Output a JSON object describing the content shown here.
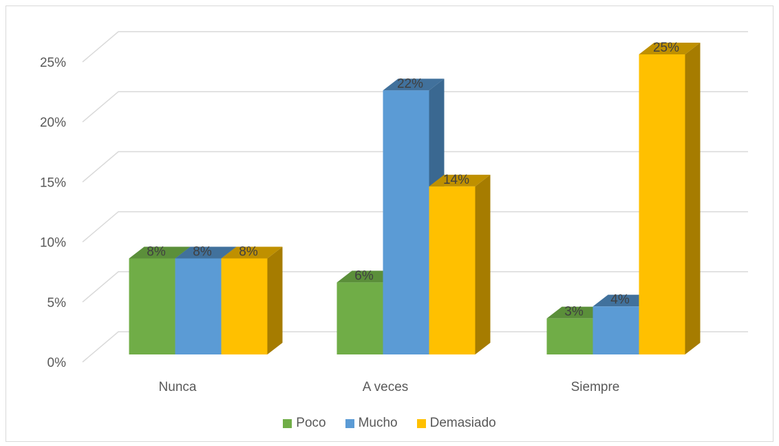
{
  "chart_data": {
    "type": "bar",
    "categories": [
      "Nunca",
      "A veces",
      "Siempre"
    ],
    "series": [
      {
        "name": "Poco",
        "values": [
          8,
          6,
          3
        ],
        "labels": [
          "8%",
          "6%",
          "3%"
        ],
        "color": "#70ad47",
        "side": "#548235",
        "top": "#5b8f3a"
      },
      {
        "name": "Mucho",
        "values": [
          8,
          22,
          4
        ],
        "labels": [
          "8%",
          "22%",
          "4%"
        ],
        "color": "#5b9bd5",
        "side": "#3a6891",
        "top": "#41719c"
      },
      {
        "name": "Demasiado",
        "values": [
          8,
          14,
          25
        ],
        "labels": [
          "8%",
          "14%",
          "25%"
        ],
        "color": "#ffc000",
        "side": "#a67c00",
        "top": "#bf9000"
      }
    ],
    "yticks": [
      "0%",
      "5%",
      "10%",
      "15%",
      "20%",
      "25%"
    ],
    "ylim": [
      0,
      25
    ],
    "grid": true,
    "legend": "bottom",
    "gridline_color": "#d9d9d9",
    "axis_color": "#d9d9d9"
  }
}
